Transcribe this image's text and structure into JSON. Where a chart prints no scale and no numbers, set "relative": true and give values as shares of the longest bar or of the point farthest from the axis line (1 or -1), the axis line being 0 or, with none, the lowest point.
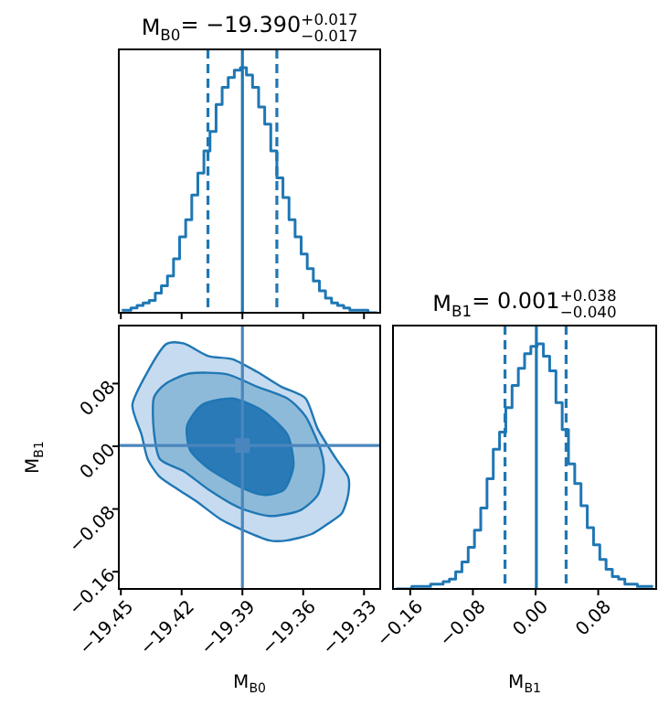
{
  "chart_data": [
    {
      "type": "step",
      "title": "M$_{B0}$= −19.390$^{+0.017}$$_{−0.017}$",
      "relative": true,
      "color": "#1f77b4",
      "tick_labels": false,
      "x": [
        -19.4495,
        -19.4465,
        -19.4435,
        -19.4405,
        -19.4375,
        -19.4345,
        -19.4315,
        -19.4285,
        -19.4255,
        -19.4225,
        -19.4195,
        -19.4165,
        -19.4135,
        -19.4105,
        -19.4075,
        -19.4045,
        -19.4015,
        -19.3985,
        -19.3955,
        -19.3925,
        -19.3895,
        -19.3865,
        -19.3835,
        -19.3805,
        -19.3775,
        -19.3745,
        -19.3715,
        -19.3685,
        -19.3655,
        -19.3625,
        -19.3595,
        -19.3565,
        -19.3535,
        -19.3505,
        -19.3475,
        -19.3445,
        -19.3415,
        -19.3385,
        -19.3355,
        -19.3325,
        -19.3295,
        -19.3265,
        -19.3235
      ],
      "values": [
        0.01,
        0.01,
        0.02,
        0.03,
        0.04,
        0.05,
        0.08,
        0.11,
        0.15,
        0.22,
        0.31,
        0.38,
        0.48,
        0.57,
        0.66,
        0.74,
        0.85,
        0.92,
        0.96,
        0.99,
        1,
        0.97,
        0.92,
        0.84,
        0.77,
        0.66,
        0.55,
        0.47,
        0.38,
        0.31,
        0.24,
        0.18,
        0.13,
        0.09,
        0.06,
        0.04,
        0.03,
        0.02,
        0.01,
        0.01,
        0.01,
        0.0,
        0.0
      ],
      "xlim": [
        -19.451,
        -19.322
      ],
      "xticks": [
        -19.45,
        -19.42,
        -19.39,
        -19.36,
        -19.33
      ],
      "ref_lines": [
        {
          "axis": "x",
          "value": -19.407,
          "line_style": "dashed",
          "color": "#1f77b4"
        },
        {
          "axis": "x",
          "value": -19.39,
          "line_style": "solid",
          "color": "#1f77b4"
        },
        {
          "axis": "x",
          "value": -19.373,
          "line_style": "dashed",
          "color": "#1f77b4"
        }
      ]
    },
    {
      "type": "area",
      "xlabel": "M$_{B0}$",
      "ylabel": "M$_{B1}$",
      "xlim": [
        -19.451,
        -19.322
      ],
      "xticks": [
        {
          "value": -19.45,
          "label": "−19.45"
        },
        {
          "value": -19.42,
          "label": "−19.42"
        },
        {
          "value": -19.39,
          "label": "−19.39"
        },
        {
          "value": -19.36,
          "label": "−19.36"
        },
        {
          "value": -19.33,
          "label": "−19.33"
        }
      ],
      "ylim": [
        -0.182,
        0.154
      ],
      "yticks": [
        {
          "value": -0.16,
          "label": "−0.16"
        },
        {
          "value": -0.08,
          "label": "−0.08"
        },
        {
          "value": 0,
          "label": "0.00"
        },
        {
          "value": 0.08,
          "label": "0.08"
        }
      ],
      "series": [
        {
          "type": "area",
          "color": "#c6dbef",
          "x": [
            -19.4443,
            -19.4368,
            -19.4278,
            -19.4188,
            -19.4068,
            -19.3948,
            -19.3828,
            -19.3708,
            -19.3588,
            -19.3528,
            -19.3438,
            -19.3378,
            -19.3378,
            -19.3408,
            -19.3468,
            -19.3558,
            -19.3678,
            -19.3768,
            -19.3888,
            -19.4008,
            -19.4128,
            -19.4218,
            -19.4308,
            -19.4368,
            -19.4398
          ],
          "values": [
            0.053,
            0.095,
            0.13,
            0.131,
            0.115,
            0.111,
            0.095,
            0.076,
            0.061,
            0.022,
            -0.016,
            -0.039,
            -0.062,
            -0.085,
            -0.097,
            -0.112,
            -0.12,
            -0.12,
            -0.108,
            -0.093,
            -0.07,
            -0.055,
            -0.039,
            -0.016,
            0.015
          ]
        },
        {
          "type": "area",
          "color": "#8ebad9",
          "x": [
            -19.4338,
            -19.4278,
            -19.4158,
            -19.3978,
            -19.3828,
            -19.3678,
            -19.3588,
            -19.3513,
            -19.3498,
            -19.3528,
            -19.3618,
            -19.3768,
            -19.3918,
            -19.4068,
            -19.4188,
            -19.4308,
            -19.4338
          ],
          "values": [
            0.061,
            0.08,
            0.093,
            0.092,
            0.076,
            0.061,
            0.038,
            -0.005,
            -0.032,
            -0.062,
            -0.082,
            -0.089,
            -0.078,
            -0.055,
            -0.032,
            -0.016,
            0.022
          ]
        },
        {
          "type": "area",
          "color": "#2a7ab8",
          "x": [
            -19.4173,
            -19.4098,
            -19.3948,
            -19.3798,
            -19.3678,
            -19.3648,
            -19.3693,
            -19.3798,
            -19.3918,
            -19.4068,
            -19.4158
          ],
          "values": [
            0.026,
            0.053,
            0.061,
            0.045,
            0.015,
            -0.024,
            -0.055,
            -0.062,
            -0.051,
            -0.028,
            -0.005
          ]
        },
        {
          "type": "scatter",
          "color": "#4a86bd",
          "marker": "square",
          "x": [
            -19.39
          ],
          "values": [
            0.001
          ]
        }
      ],
      "ref_lines": [
        {
          "axis": "x",
          "value": -19.39,
          "line_style": "solid",
          "color": "#4a86bd"
        },
        {
          "axis": "y",
          "value": 0.001,
          "line_style": "solid",
          "color": "#4a86bd"
        }
      ]
    },
    {
      "type": "step",
      "title": "M$_{B1}$= 0.001$^{+0.038}$$_{−0.040}$",
      "xlabel": "M$_{B1}$",
      "relative": true,
      "color": "#1f77b4",
      "tick_labels": "x",
      "x": [
        -0.178,
        -0.17,
        -0.162,
        -0.154,
        -0.146,
        -0.138,
        -0.13,
        -0.122,
        -0.114,
        -0.106,
        -0.098,
        -0.09,
        -0.082,
        -0.074,
        -0.066,
        -0.058,
        -0.05,
        -0.042,
        -0.034,
        -0.026,
        -0.018,
        -0.01,
        -0.002,
        0.006,
        0.014,
        0.022,
        0.03,
        0.038,
        0.046,
        0.054,
        0.062,
        0.07,
        0.078,
        0.086,
        0.094,
        0.102,
        0.11,
        0.118,
        0.126,
        0.134,
        0.142,
        0.15
      ],
      "values": [
        0.0,
        0.0,
        0.0,
        0.01,
        0.01,
        0.01,
        0.02,
        0.02,
        0.03,
        0.04,
        0.07,
        0.11,
        0.17,
        0.24,
        0.33,
        0.45,
        0.57,
        0.64,
        0.74,
        0.83,
        0.9,
        0.96,
        0.99,
        1,
        0.95,
        0.89,
        0.76,
        0.65,
        0.51,
        0.43,
        0.34,
        0.25,
        0.18,
        0.12,
        0.08,
        0.05,
        0.04,
        0.02,
        0.02,
        0.01,
        0.01,
        0.01
      ],
      "xlim": [
        -0.182,
        0.154
      ],
      "xticks": [
        {
          "value": -0.16,
          "label": "−0.16"
        },
        {
          "value": -0.08,
          "label": "−0.08"
        },
        {
          "value": 0,
          "label": "0.00"
        },
        {
          "value": 0.08,
          "label": "0.08"
        }
      ],
      "ref_lines": [
        {
          "axis": "x",
          "value": -0.039,
          "line_style": "dashed",
          "color": "#1f77b4"
        },
        {
          "axis": "x",
          "value": 0.001,
          "line_style": "solid",
          "color": "#1f77b4"
        },
        {
          "axis": "x",
          "value": 0.039,
          "line_style": "dashed",
          "color": "#1f77b4"
        }
      ]
    }
  ]
}
